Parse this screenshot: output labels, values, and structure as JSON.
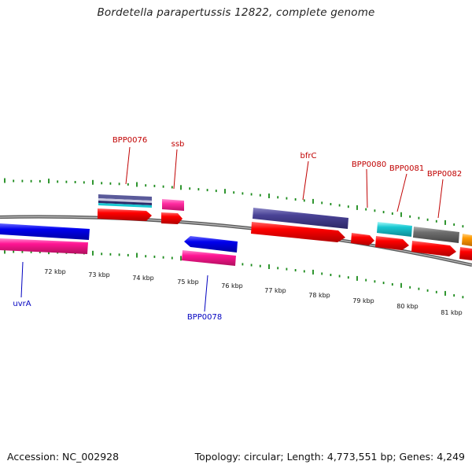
{
  "title": "Bordetella parapertussis 12822, complete genome",
  "footer": {
    "accession": "Accession: NC_002928",
    "summary": "Topology: circular; Length: 4,773,551 bp; Genes: 4,249"
  },
  "colors": {
    "forward_label": "#c00000",
    "reverse_label": "#0000c0",
    "tick": "#1a8a1a",
    "backbone": "#8a8a8a"
  },
  "kbp_ticks": [
    "72 kbp",
    "73 kbp",
    "74 kbp",
    "75 kbp",
    "76 kbp",
    "77 kbp",
    "78 kbp",
    "79 kbp",
    "80 kbp",
    "81 kbp"
  ],
  "labels": [
    {
      "id": "BPP0076",
      "text": "BPP0076",
      "strand": "forward"
    },
    {
      "id": "ssb",
      "text": "ssb",
      "strand": "forward"
    },
    {
      "id": "bfrC",
      "text": "bfrC",
      "strand": "forward"
    },
    {
      "id": "BPP0080",
      "text": "BPP0080",
      "strand": "forward"
    },
    {
      "id": "BPP0081",
      "text": "BPP0081",
      "strand": "forward"
    },
    {
      "id": "BPP0082",
      "text": "BPP0082",
      "strand": "forward"
    },
    {
      "id": "uvrA",
      "text": "uvrA",
      "strand": "reverse"
    },
    {
      "id": "BPP0078",
      "text": "BPP0078",
      "strand": "reverse"
    }
  ],
  "features": [
    {
      "id": "f-0076-cds",
      "track": "fwd-outer",
      "color": "stripe-purple",
      "direction": "none"
    },
    {
      "id": "f-0076-gene",
      "track": "fwd-inner",
      "color": "red",
      "direction": "right"
    },
    {
      "id": "f-ssb-cds",
      "track": "fwd-outer",
      "color": "pink",
      "direction": "none"
    },
    {
      "id": "f-ssb-gene",
      "track": "fwd-inner",
      "color": "red",
      "direction": "right"
    },
    {
      "id": "f-bfrC-cds",
      "track": "fwd-outer",
      "color": "purple",
      "direction": "none"
    },
    {
      "id": "f-bfrC-gene",
      "track": "fwd-inner",
      "color": "red",
      "direction": "right"
    },
    {
      "id": "f-0080-gene",
      "track": "fwd-inner",
      "color": "red",
      "direction": "right"
    },
    {
      "id": "f-0081-cds",
      "track": "fwd-outer",
      "color": "cyan",
      "direction": "none"
    },
    {
      "id": "f-0081-gene",
      "track": "fwd-inner",
      "color": "red",
      "direction": "right"
    },
    {
      "id": "f-0082-cds",
      "track": "fwd-outer",
      "color": "gray",
      "direction": "none"
    },
    {
      "id": "f-0082-gene",
      "track": "fwd-inner",
      "color": "red",
      "direction": "right"
    },
    {
      "id": "f-0083-cds",
      "track": "fwd-outer",
      "color": "orange",
      "direction": "none"
    },
    {
      "id": "f-0083-gene",
      "track": "fwd-inner",
      "color": "red",
      "direction": "right"
    },
    {
      "id": "f-uvrA-cds",
      "track": "rev-inner",
      "color": "blue",
      "direction": "left"
    },
    {
      "id": "f-uvrA-gene",
      "track": "rev-outer",
      "color": "magenta",
      "direction": "left"
    },
    {
      "id": "f-0078-cds",
      "track": "rev-inner",
      "color": "blue",
      "direction": "left"
    },
    {
      "id": "f-0078-gene",
      "track": "rev-outer",
      "color": "magenta",
      "direction": "left"
    }
  ]
}
